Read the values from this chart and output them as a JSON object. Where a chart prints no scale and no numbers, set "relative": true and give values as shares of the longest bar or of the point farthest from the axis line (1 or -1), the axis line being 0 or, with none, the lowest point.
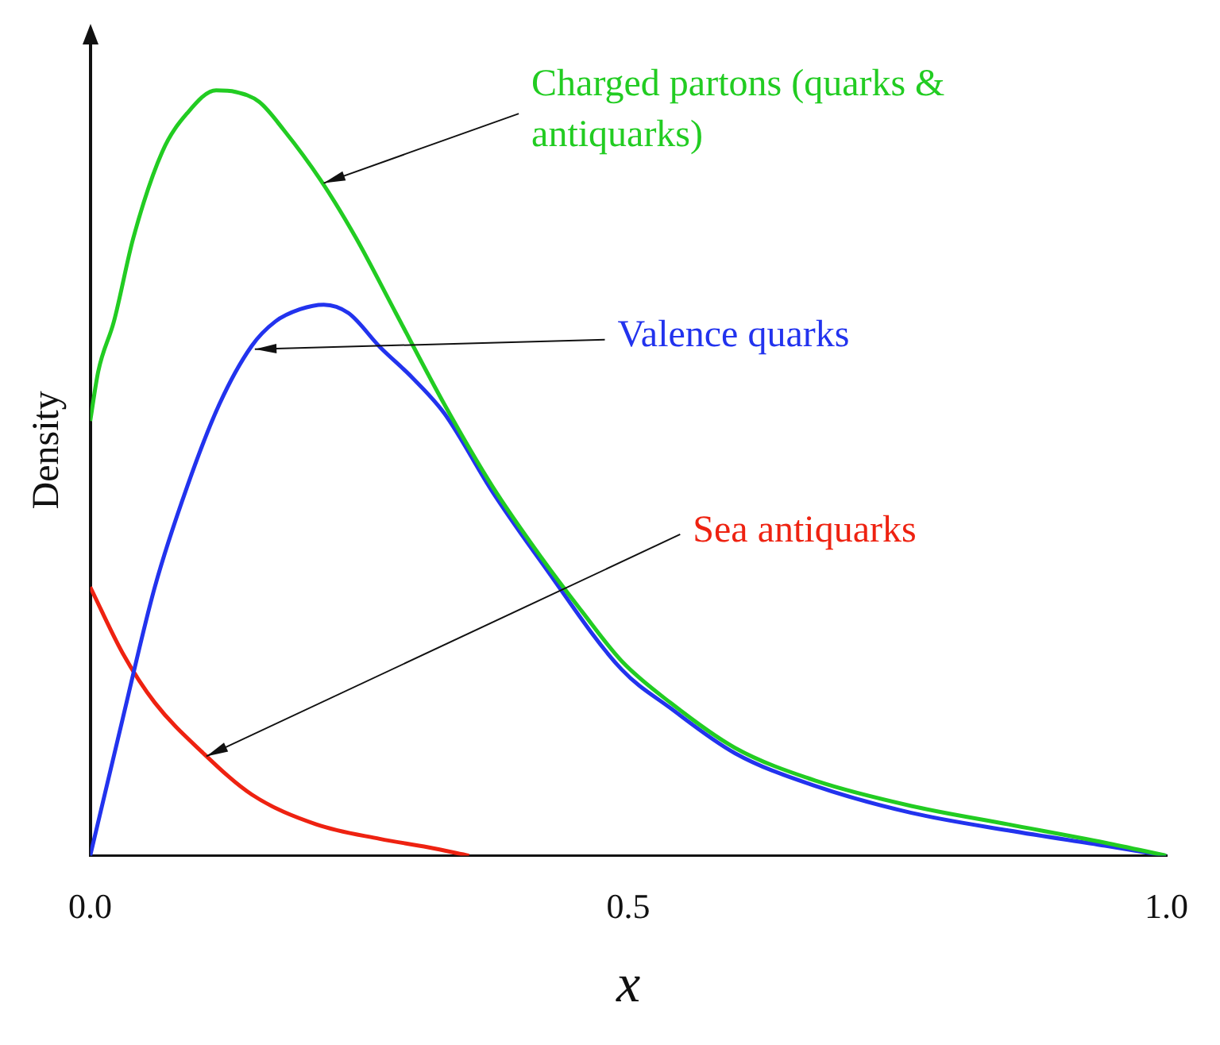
{
  "chart_data": {
    "type": "line",
    "xlabel": "x",
    "ylabel": "Density",
    "relative": true,
    "xlim": [
      0,
      1
    ],
    "xticks": [
      {
        "value": 0,
        "label": "0.0"
      },
      {
        "value": 0.5,
        "label": "0.5"
      },
      {
        "value": 1,
        "label": "1.0"
      }
    ],
    "grid": false,
    "legend": false,
    "marker": "none",
    "line_style": "solid",
    "series": [
      {
        "name": "Charged partons (quarks & antiquarks)",
        "color": "#22cc22",
        "x": [
          0,
          0.0075,
          0.022,
          0.04,
          0.067,
          0.09,
          0.117,
          0.135,
          0.157,
          0.18,
          0.214,
          0.247,
          0.284,
          0.329,
          0.374,
          0.419,
          0.457,
          0.494,
          0.539,
          0.599,
          0.674,
          0.763,
          0.853,
          0.943,
          1
        ],
        "values": [
          0.568,
          0.633,
          0.698,
          0.807,
          0.92,
          0.97,
          1,
          0.998,
          0.985,
          0.948,
          0.883,
          0.807,
          0.709,
          0.59,
          0.482,
          0.39,
          0.319,
          0.254,
          0.2,
          0.141,
          0.098,
          0.065,
          0.041,
          0.017,
          0
        ]
      },
      {
        "name": "Valence quarks",
        "color": "#2233ee",
        "x": [
          0,
          0.03,
          0.06,
          0.09,
          0.12,
          0.15,
          0.172,
          0.195,
          0.217,
          0.24,
          0.269,
          0.299,
          0.329,
          0.374,
          0.419,
          0.494,
          0.539,
          0.599,
          0.674,
          0.763,
          0.853,
          0.943,
          1
        ],
        "values": [
          0,
          0.178,
          0.351,
          0.482,
          0.59,
          0.666,
          0.698,
          0.714,
          0.72,
          0.709,
          0.665,
          0.625,
          0.578,
          0.475,
          0.384,
          0.243,
          0.193,
          0.134,
          0.091,
          0.056,
          0.033,
          0.013,
          0
        ]
      },
      {
        "name": "Sea antiquarks",
        "color": "#ee2211",
        "x": [
          0,
          0.03,
          0.06,
          0.105,
          0.15,
          0.21,
          0.269,
          0.314,
          0.352
        ],
        "values": [
          0.351,
          0.265,
          0.2,
          0.134,
          0.08,
          0.041,
          0.022,
          0.011,
          0
        ]
      }
    ]
  }
}
